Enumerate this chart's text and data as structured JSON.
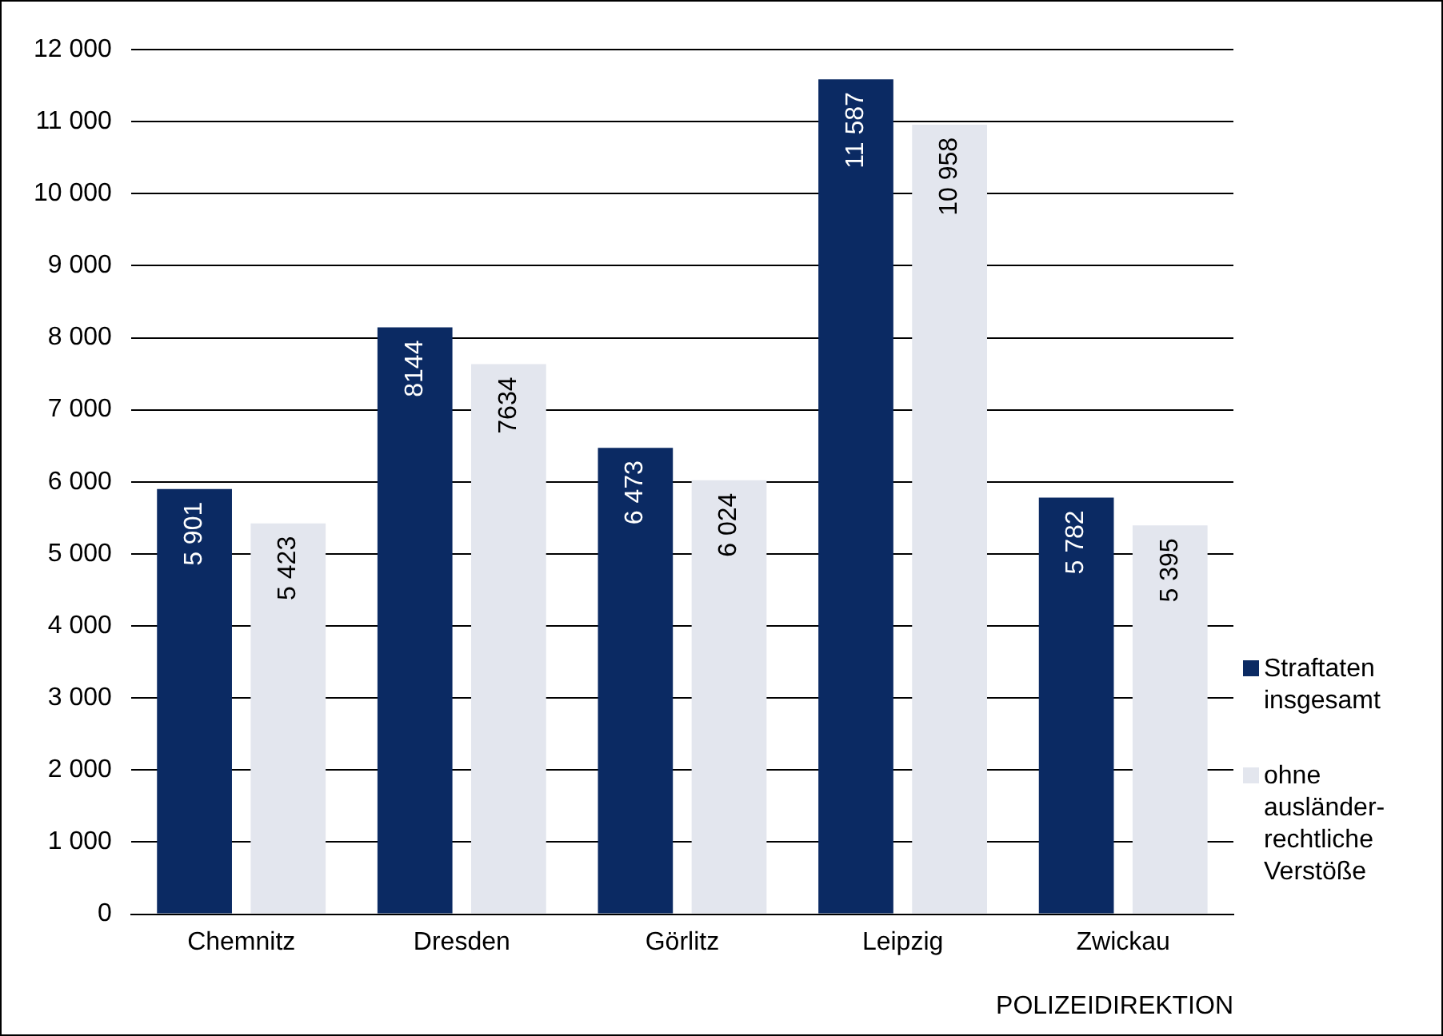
{
  "chart_data": {
    "type": "bar",
    "xlabel": "POLIZEIDIREKTION",
    "categories": [
      "Chemnitz",
      "Dresden",
      "Görlitz",
      "Leipzig",
      "Zwickau"
    ],
    "series": [
      {
        "name": "Straftaten insgesamt",
        "color": "#0b2a63",
        "values": [
          5901,
          8144,
          6473,
          11587,
          5782
        ],
        "value_labels": [
          "5 901",
          "8144",
          "6 473",
          "11 587",
          "5 782"
        ]
      },
      {
        "name": "ohne ausländer-rechtliche Verstöße",
        "color": "#e3e6ee",
        "values": [
          5423,
          7634,
          6024,
          10958,
          5395
        ],
        "value_labels": [
          "5 423",
          "7634",
          "6 024",
          "10 958",
          "5 395"
        ]
      }
    ],
    "ylim": [
      0,
      12000
    ],
    "yticks": [
      {
        "value": 0,
        "label": "0"
      },
      {
        "value": 1000,
        "label": "1 000"
      },
      {
        "value": 2000,
        "label": "2 000"
      },
      {
        "value": 3000,
        "label": "3 000"
      },
      {
        "value": 4000,
        "label": "4 000"
      },
      {
        "value": 5000,
        "label": "5 000"
      },
      {
        "value": 6000,
        "label": "6 000"
      },
      {
        "value": 7000,
        "label": "7 000"
      },
      {
        "value": 8000,
        "label": "8 000"
      },
      {
        "value": 9000,
        "label": "9 000"
      },
      {
        "value": 10000,
        "label": "10 000"
      },
      {
        "value": 11000,
        "label": "11 000"
      },
      {
        "value": 12000,
        "label": "12 000"
      }
    ],
    "grid": "y",
    "legend": "right"
  }
}
